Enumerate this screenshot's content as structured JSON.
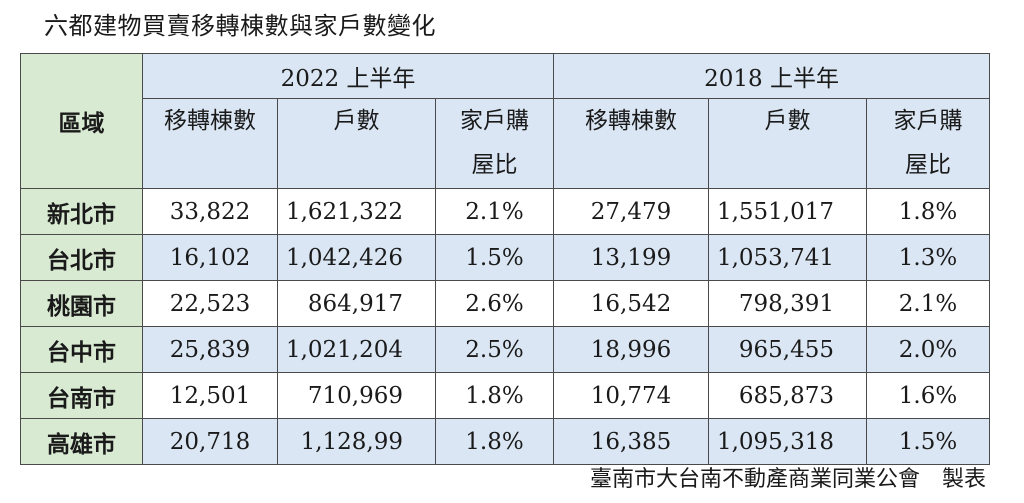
{
  "title": "六都建物買賣移轉棟數與家戶數變化",
  "footer": "臺南市大台南不動產商業同業公會　製表",
  "chart_data": {
    "type": "table",
    "region_header": "區域",
    "groups": [
      {
        "label": "2022 上半年",
        "columns": [
          "移轉棟數",
          "戶數",
          "家戶購屋比"
        ]
      },
      {
        "label": "2018 上半年",
        "columns": [
          "移轉棟數",
          "戶數",
          "家戶購屋比"
        ]
      }
    ],
    "rows": [
      {
        "region": "新北市",
        "values": [
          "33,822",
          "1,621,322",
          "2.1%",
          "27,479",
          "1,551,017",
          "1.8%"
        ]
      },
      {
        "region": "台北市",
        "values": [
          "16,102",
          "1,042,426",
          "1.5%",
          "13,199",
          "1,053,741",
          "1.3%"
        ]
      },
      {
        "region": "桃園市",
        "values": [
          "22,523",
          "864,917",
          "2.6%",
          "16,542",
          "798,391",
          "2.1%"
        ]
      },
      {
        "region": "台中市",
        "values": [
          "25,839",
          "1,021,204",
          "2.5%",
          "18,996",
          "965,455",
          "2.0%"
        ]
      },
      {
        "region": "台南市",
        "values": [
          "12,501",
          "710,969",
          "1.8%",
          "10,774",
          "685,873",
          "1.6%"
        ]
      },
      {
        "region": "高雄市",
        "values": [
          "20,718",
          "1,128,99",
          "1.8%",
          "16,385",
          "1,095,318",
          "1.5%"
        ]
      }
    ]
  },
  "colors": {
    "region_bg": "#d9ead3",
    "header_bg": "#dae6f3",
    "shade_bg": "#dae6f3",
    "border": "#4a4a4a"
  }
}
